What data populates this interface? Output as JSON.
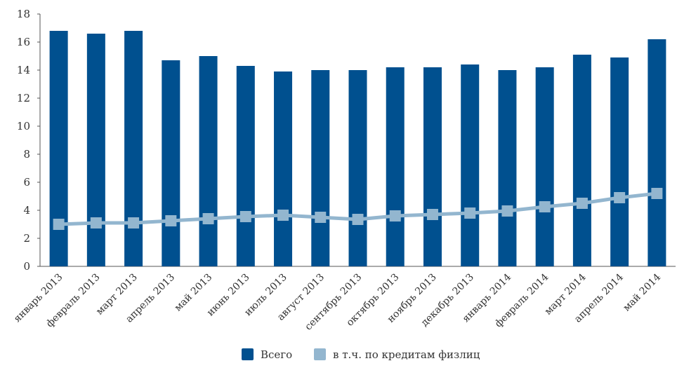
{
  "chart_data": {
    "type": "bar",
    "categories": [
      "январь 2013",
      "февраль 2013",
      "март 2013",
      "апрель 2013",
      "май 2013",
      "июнь 2013",
      "июль 2013",
      "август 2013",
      "сентябрь 2013",
      "октябрь 2013",
      "ноябрь 2013",
      "декабрь 2013",
      "январь 2014",
      "февраль 2014",
      "март 2014",
      "апрель 2014",
      "май 2014"
    ],
    "series": [
      {
        "name": "Всего",
        "type": "bar",
        "color": "#00508f",
        "values": [
          16.8,
          16.6,
          16.8,
          14.7,
          15.0,
          14.3,
          13.9,
          14.0,
          14.0,
          14.2,
          14.2,
          14.4,
          14.0,
          14.2,
          15.1,
          14.9,
          16.2
        ]
      },
      {
        "name": "в т.ч. по кредитам физлиц",
        "type": "line",
        "color": "#93b6cf",
        "values": [
          3.0,
          3.1,
          3.1,
          3.25,
          3.4,
          3.55,
          3.65,
          3.5,
          3.35,
          3.6,
          3.7,
          3.8,
          3.95,
          4.25,
          4.5,
          4.9,
          5.2
        ]
      }
    ],
    "yticks": [
      "0",
      "2",
      "4",
      "6",
      "8",
      "10",
      "12",
      "14",
      "16",
      "18"
    ],
    "ylim": [
      0,
      18
    ],
    "title": "",
    "xlabel": "",
    "ylabel": "",
    "grid": false,
    "legend_position": "bottom-center"
  }
}
